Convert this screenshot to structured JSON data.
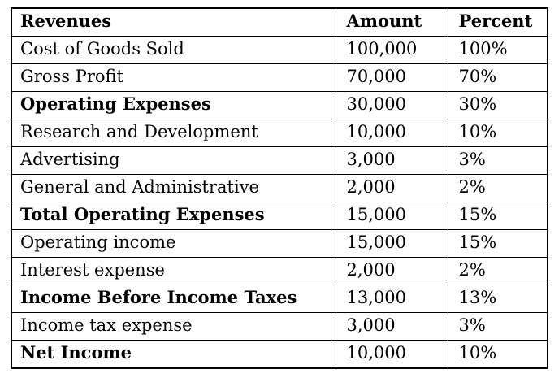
{
  "table": {
    "columns": [
      {
        "label": "Revenues"
      },
      {
        "label": "Amount"
      },
      {
        "label": "Percent"
      }
    ],
    "rows": [
      {
        "label": "Cost of Goods Sold",
        "amount": "100,000",
        "percent": "100%",
        "bold": false
      },
      {
        "label": "Gross Profit",
        "amount": "70,000",
        "percent": "70%",
        "bold": false
      },
      {
        "label": "Operating Expenses",
        "amount": "30,000",
        "percent": "30%",
        "bold": true
      },
      {
        "label": "Research and Development",
        "amount": "10,000",
        "percent": "10%",
        "bold": false
      },
      {
        "label": "Advertising",
        "amount": "3,000",
        "percent": "3%",
        "bold": false
      },
      {
        "label": "General and Administrative",
        "amount": "2,000",
        "percent": "2%",
        "bold": false
      },
      {
        "label": "Total Operating Expenses",
        "amount": "15,000",
        "percent": "15%",
        "bold": true
      },
      {
        "label": "Operating income",
        "amount": "15,000",
        "percent": "15%",
        "bold": false
      },
      {
        "label": "Interest expense",
        "amount": "2,000",
        "percent": "2%",
        "bold": false
      },
      {
        "label": "Income Before Income Taxes",
        "amount": "13,000",
        "percent": "13%",
        "bold": true
      },
      {
        "label": "Income tax expense",
        "amount": "3,000",
        "percent": "3%",
        "bold": false
      },
      {
        "label": "Net Income",
        "amount": "10,000",
        "percent": "10%",
        "bold": true
      }
    ],
    "colors": {
      "border": "#000000",
      "text": "#000000",
      "background": "#ffffff"
    }
  }
}
